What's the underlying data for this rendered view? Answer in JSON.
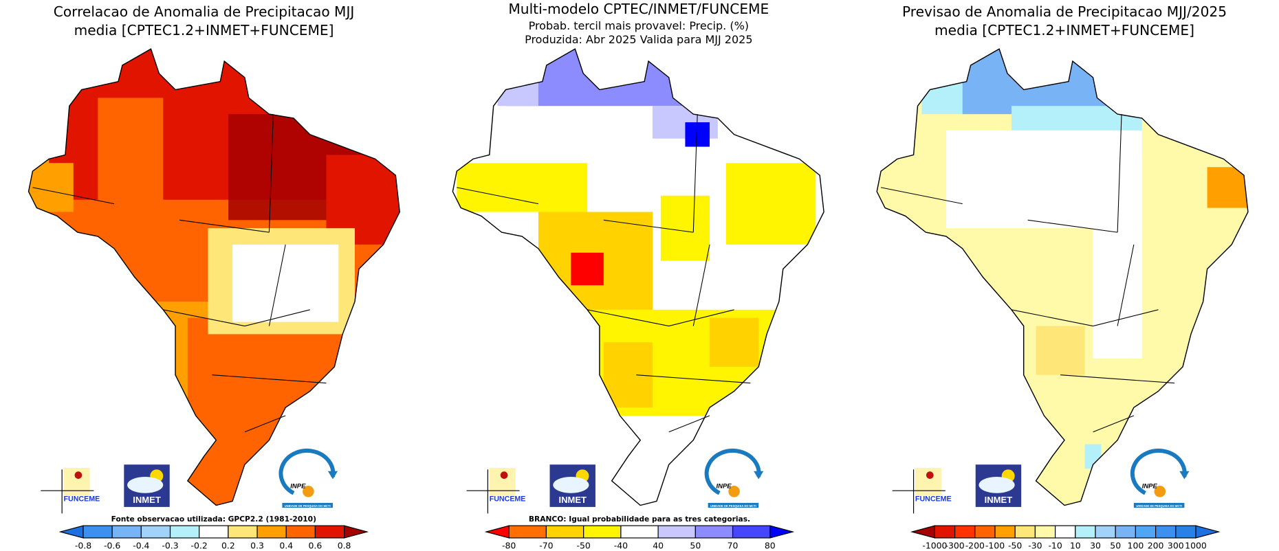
{
  "panels": [
    {
      "title_line1": "Correlacao de Anomalia de Precipitacao MJJ",
      "title_line2": "media [CPTEC1.2+INMET+FUNCEME]",
      "caption": "Fonte observacao utilizada: GPCP2.2 (1981-2010)",
      "colorbar": {
        "labels": [
          "-0.8",
          "-0.6",
          "-0.4",
          "-0.3",
          "-0.2",
          "0.2",
          "0.3",
          "0.4",
          "0.6",
          "0.8"
        ],
        "colors": [
          "#1e6fe0",
          "#3c91f0",
          "#78b4f5",
          "#a0d2fa",
          "#b4f0fa",
          "#ffffff",
          "#ffe678",
          "#ffa000",
          "#ff6400",
          "#e11400",
          "#a50000"
        ]
      }
    },
    {
      "title_line1": "Multi-modelo CPTEC/INMET/FUNCEME",
      "title_line2": "Probab. tercil mais provavel: Precip. (%)",
      "title_line3": "Produzida: Abr 2025  Valida para MJJ 2025",
      "caption": "BRANCO: Igual probabilidade para as tres categorias.",
      "colorbar": {
        "labels": [
          "-80",
          "-70",
          "-50",
          "-40",
          "40",
          "50",
          "70",
          "80"
        ],
        "colors": [
          "#ff0000",
          "#ff6e00",
          "#ffd200",
          "#fff500",
          "#ffffff",
          "#c8c8ff",
          "#8c8cff",
          "#4646ff",
          "#0000ff"
        ]
      }
    },
    {
      "title_line1": "Previsao de Anomalia de Precipitacao MJJ/2025",
      "title_line2": "media [CPTEC1.2+INMET+FUNCEME]",
      "caption": "",
      "colorbar": {
        "labels": [
          "-1000",
          "-300",
          "-200",
          "-100",
          "-50",
          "-30",
          "-10",
          "10",
          "30",
          "50",
          "100",
          "200",
          "300",
          "1000"
        ],
        "colors": [
          "#a50000",
          "#e11400",
          "#ff3200",
          "#ff6400",
          "#ffa000",
          "#ffe678",
          "#fffaaa",
          "#ffffff",
          "#b4f0fa",
          "#a0d2fa",
          "#78b4f5",
          "#50a5f5",
          "#3c91f0",
          "#2882e6",
          "#1e6fe0"
        ]
      }
    }
  ],
  "logos": {
    "funceme": "FUNCEME",
    "inmet": "INMET",
    "inpe": "INPE",
    "inpe_sub": "UNIDADE DE PESQUISA DO MCTI"
  },
  "colors": {
    "outline": "#000000"
  }
}
